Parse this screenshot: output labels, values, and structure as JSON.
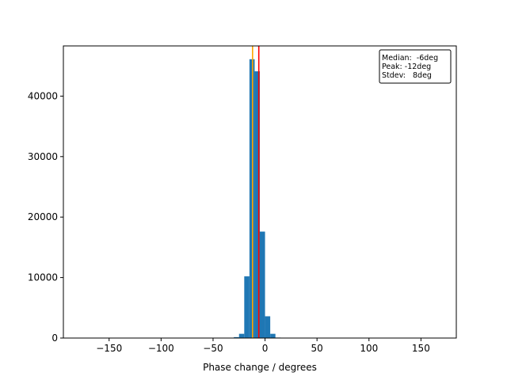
{
  "chart_data": {
    "type": "bar",
    "title": "",
    "xlabel": "Phase change / degrees",
    "ylabel": "",
    "xlim": [
      -194,
      184
    ],
    "ylim": [
      0,
      48300
    ],
    "xticks": [
      -150,
      -100,
      -50,
      0,
      50,
      100,
      150
    ],
    "xtick_labels": [
      "−150",
      "−100",
      "−50",
      "0",
      "50",
      "100",
      "150"
    ],
    "yticks": [
      0,
      10000,
      20000,
      30000,
      40000
    ],
    "ytick_labels": [
      "0",
      "10000",
      "20000",
      "30000",
      "40000"
    ],
    "bin_width": 5,
    "bins": [
      {
        "start": -30,
        "end": -25,
        "value": 150
      },
      {
        "start": -25,
        "end": -20,
        "value": 700
      },
      {
        "start": -20,
        "end": -15,
        "value": 10200
      },
      {
        "start": -15,
        "end": -10,
        "value": 46100
      },
      {
        "start": -10,
        "end": -5,
        "value": 44100
      },
      {
        "start": -5,
        "end": 0,
        "value": 17600
      },
      {
        "start": 0,
        "end": 5,
        "value": 3600
      },
      {
        "start": 5,
        "end": 10,
        "value": 700
      },
      {
        "start": 10,
        "end": 15,
        "value": 80
      }
    ],
    "bar_color": "#1f77b4",
    "vlines": [
      {
        "x": -12,
        "color": "#ffa500",
        "label": "Peak"
      },
      {
        "x": -6,
        "color": "#ff0000",
        "label": "Median"
      }
    ],
    "annotation": {
      "lines": [
        "Median:  -6deg",
        "Peak: -12deg",
        "Stdev:   8deg"
      ],
      "placement": "top-right"
    },
    "grid": false,
    "legend": "none"
  }
}
